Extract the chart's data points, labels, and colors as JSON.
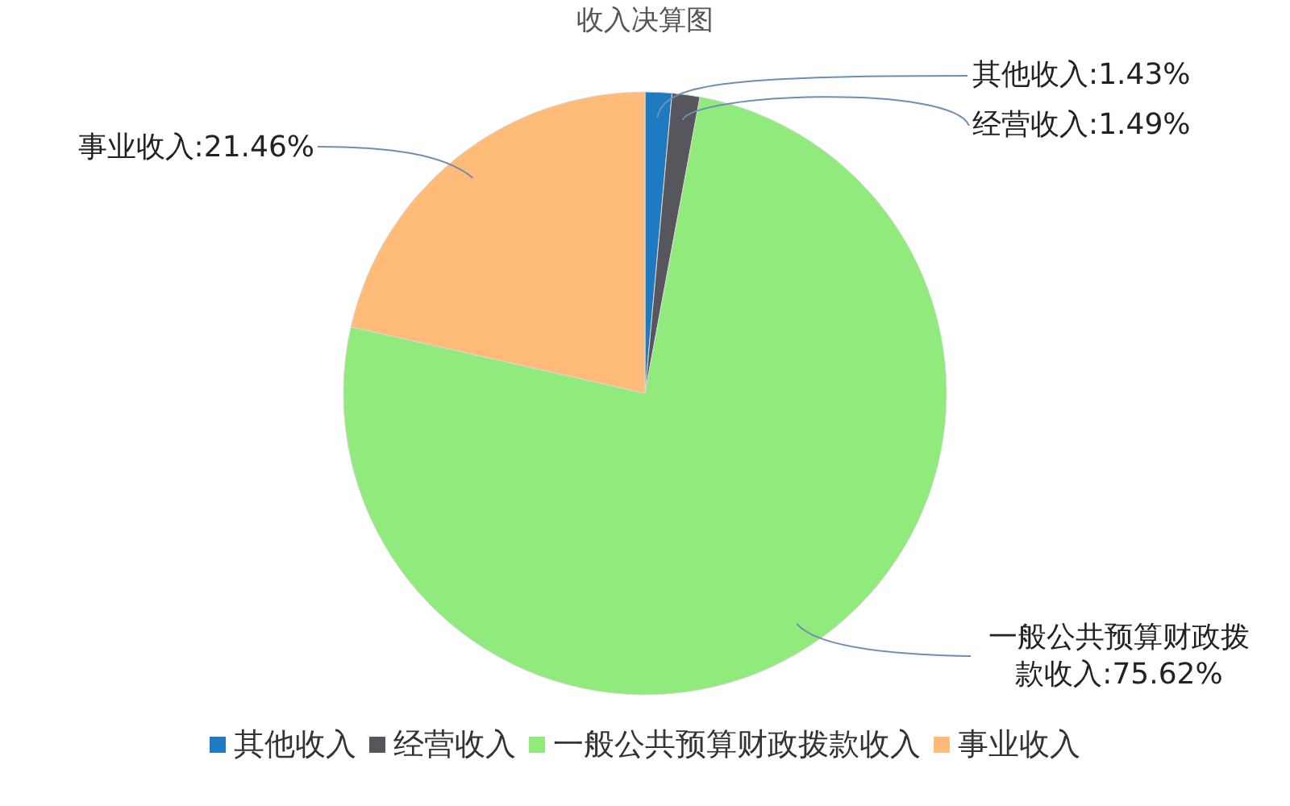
{
  "chart_data": {
    "type": "pie",
    "title": "收入决算图",
    "categories": [
      "其他收入",
      "经营收入",
      "一般公共预算财政拨款收入",
      "事业收入"
    ],
    "values": [
      1.43,
      1.49,
      75.62,
      21.46
    ],
    "colors": [
      "#1f7bc1",
      "#56565c",
      "#90ea7c",
      "#ffbb77"
    ],
    "value_labels": [
      "其他收入:1.43%",
      "经营收入:1.49%",
      "一般公共预算财政拨款收入:75.62%",
      "事业收入:21.46%"
    ],
    "legend": "bottom"
  }
}
